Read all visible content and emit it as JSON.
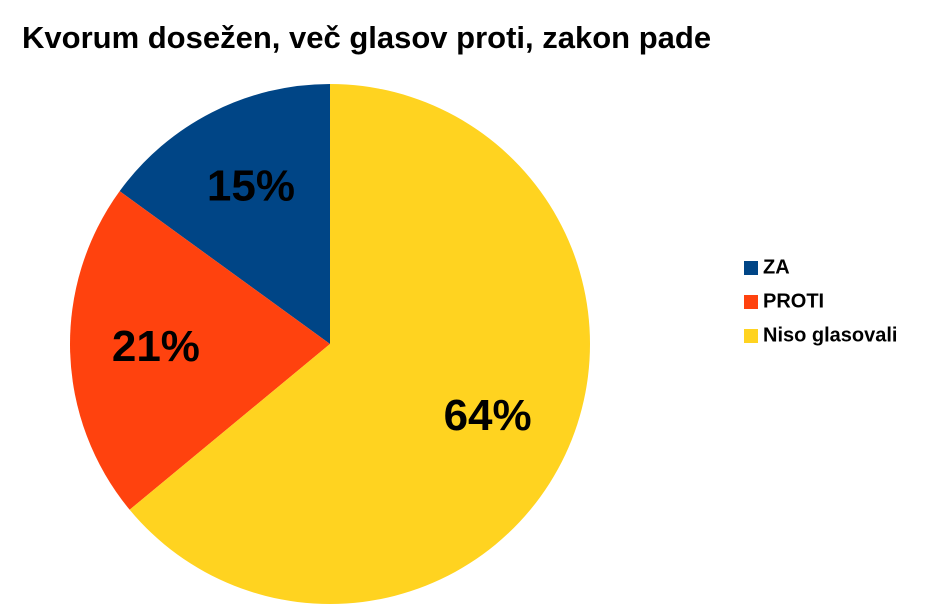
{
  "chart_data": {
    "type": "pie",
    "title": "Kvorum dosežen, več glasov proti, zakon pade",
    "categories": [
      "ZA",
      "PROTI",
      "Niso glasovali"
    ],
    "values": [
      15,
      21,
      64
    ],
    "value_labels": [
      "15%",
      "21%",
      "64%"
    ],
    "colors": [
      "#004586",
      "#ff420e",
      "#ffd320"
    ],
    "legend": "right"
  }
}
